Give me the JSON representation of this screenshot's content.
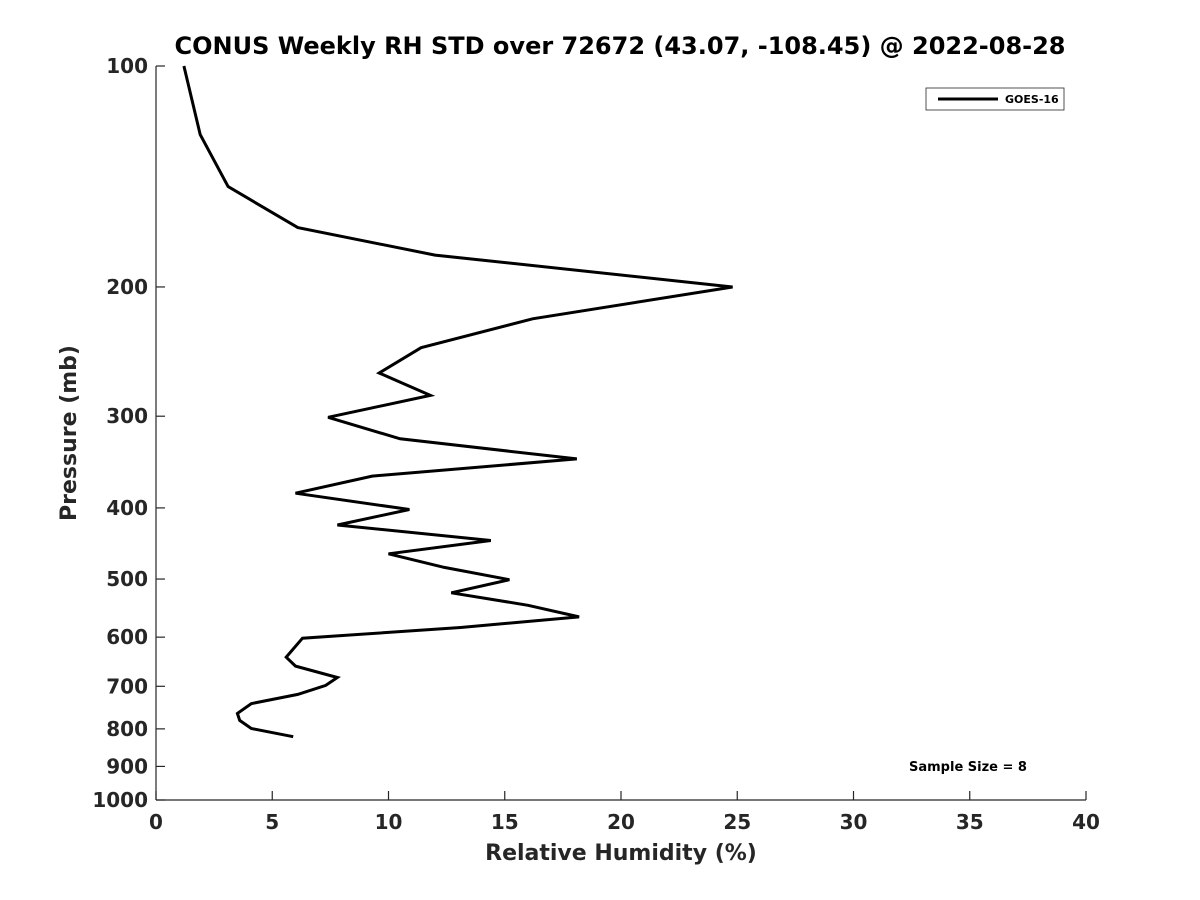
{
  "chart_data": {
    "type": "line",
    "title": "CONUS Weekly RH STD over 72672 (43.07, -108.45) @ 2022-08-28",
    "xlabel": "Relative Humidity (%)",
    "ylabel": "Pressure (mb)",
    "xlim": [
      0,
      40
    ],
    "ylim": [
      100,
      1000
    ],
    "y_scale": "log",
    "y_reversed": true,
    "x_ticks": [
      0,
      5,
      10,
      15,
      20,
      25,
      30,
      35,
      40
    ],
    "y_ticks": [
      100,
      200,
      300,
      400,
      500,
      600,
      700,
      800,
      900,
      1000
    ],
    "grid": false,
    "legend_position": "top-right",
    "line_color": "#000000",
    "series": [
      {
        "name": "GOES-16",
        "points": [
          {
            "x": 1.2,
            "y": 100
          },
          {
            "x": 1.9,
            "y": 124
          },
          {
            "x": 3.1,
            "y": 146
          },
          {
            "x": 6.1,
            "y": 166
          },
          {
            "x": 12.0,
            "y": 181
          },
          {
            "x": 24.8,
            "y": 200
          },
          {
            "x": 16.2,
            "y": 221
          },
          {
            "x": 11.4,
            "y": 242
          },
          {
            "x": 9.6,
            "y": 262
          },
          {
            "x": 11.8,
            "y": 281
          },
          {
            "x": 7.4,
            "y": 301
          },
          {
            "x": 10.5,
            "y": 322
          },
          {
            "x": 18.1,
            "y": 343
          },
          {
            "x": 9.3,
            "y": 362
          },
          {
            "x": 6.0,
            "y": 382
          },
          {
            "x": 10.9,
            "y": 402
          },
          {
            "x": 7.8,
            "y": 422
          },
          {
            "x": 14.4,
            "y": 443
          },
          {
            "x": 10.0,
            "y": 462
          },
          {
            "x": 12.4,
            "y": 482
          },
          {
            "x": 15.2,
            "y": 501
          },
          {
            "x": 12.7,
            "y": 522
          },
          {
            "x": 16.0,
            "y": 543
          },
          {
            "x": 18.2,
            "y": 563
          },
          {
            "x": 13.1,
            "y": 582
          },
          {
            "x": 6.3,
            "y": 602
          },
          {
            "x": 5.6,
            "y": 639
          },
          {
            "x": 6.0,
            "y": 657
          },
          {
            "x": 7.8,
            "y": 681
          },
          {
            "x": 7.3,
            "y": 698
          },
          {
            "x": 6.1,
            "y": 718
          },
          {
            "x": 4.1,
            "y": 739
          },
          {
            "x": 3.5,
            "y": 762
          },
          {
            "x": 3.6,
            "y": 779
          },
          {
            "x": 4.1,
            "y": 799
          },
          {
            "x": 5.9,
            "y": 820
          }
        ]
      }
    ],
    "annotations": [
      {
        "text": "Sample Size = 8"
      }
    ]
  }
}
